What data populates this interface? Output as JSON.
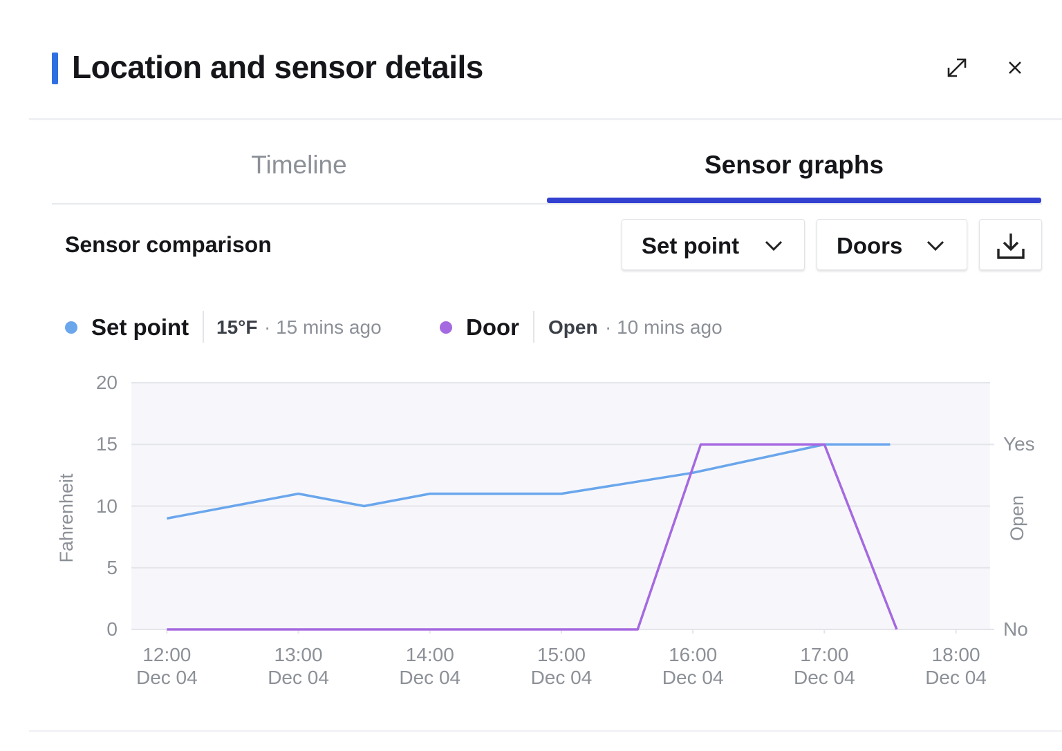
{
  "header": {
    "title": "Location and sensor details"
  },
  "tabs": [
    "Timeline",
    "Sensor graphs"
  ],
  "active_tab": 1,
  "section_title": "Sensor comparison",
  "dropdowns": [
    "Set point",
    "Doors"
  ],
  "legend_details": [
    {
      "value": "15°F",
      "time": "· 15 mins ago"
    },
    {
      "value": "Open",
      "time": "· 10 mins ago"
    }
  ],
  "chart_data": {
    "type": "line",
    "ylabel": "Fahrenheit",
    "y2label": "Open",
    "xlim": [
      11.73,
      18.26
    ],
    "xticks": [
      {
        "value": 12,
        "label": "12:00\nDec 04"
      },
      {
        "value": 13,
        "label": "13:00\nDec 04"
      },
      {
        "value": 14,
        "label": "14:00\nDec 04"
      },
      {
        "value": 15,
        "label": "15:00\nDec 04"
      },
      {
        "value": 16,
        "label": "16:00\nDec 04"
      },
      {
        "value": 17,
        "label": "17:00\nDec 04"
      },
      {
        "value": 18,
        "label": "18:00\nDec 04"
      }
    ],
    "ylim": [
      0,
      20
    ],
    "yticks": [
      0,
      5,
      10,
      15,
      20
    ],
    "y2lim": [
      0,
      1.3333
    ],
    "y2ticks": [
      {
        "value": 0,
        "label": "No"
      },
      {
        "value": 1,
        "label": "Yes"
      }
    ],
    "grid": true,
    "series": [
      {
        "name": "Set point",
        "color": "#6aa6ec",
        "x": [
          12,
          13,
          13.5,
          14,
          15,
          16,
          17,
          17.5
        ],
        "values": [
          9,
          11,
          10,
          11,
          11,
          12.7,
          15,
          15
        ]
      },
      {
        "name": "Door",
        "color": "#a569e0",
        "axis": "y2",
        "x": [
          12,
          15.58,
          16.06,
          17,
          17.55
        ],
        "values": [
          0,
          0,
          1,
          1,
          0
        ]
      }
    ]
  }
}
